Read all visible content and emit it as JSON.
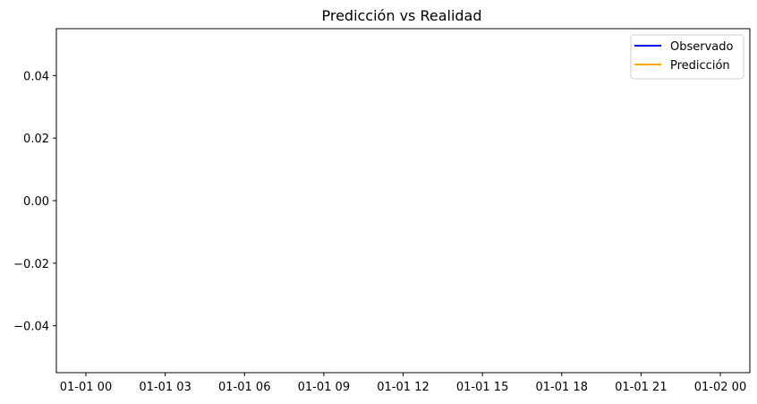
{
  "chart_data": {
    "type": "line",
    "title": "Predicción vs Realidad",
    "xlabel": "",
    "ylabel": "",
    "x_tick_labels": [
      "01-01 00",
      "01-01 03",
      "01-01 06",
      "01-01 09",
      "01-01 12",
      "01-01 15",
      "01-01 18",
      "01-01 21",
      "01-02 00"
    ],
    "y_ticks": [
      0.04,
      0.02,
      0.0,
      -0.02,
      -0.04
    ],
    "y_tick_labels": [
      "0.04",
      "0.02",
      "0.00",
      "−0.02",
      "−0.04"
    ],
    "ylim": [
      -0.055,
      0.055
    ],
    "xlim": [
      "01-01 00",
      "01-02 00"
    ],
    "grid": false,
    "legend_position": "top-right",
    "series": [
      {
        "name": "Observado",
        "color": "#0000ff",
        "x": [],
        "y": []
      },
      {
        "name": "Predicción",
        "color": "#ffa500",
        "x": [],
        "y": []
      }
    ]
  }
}
